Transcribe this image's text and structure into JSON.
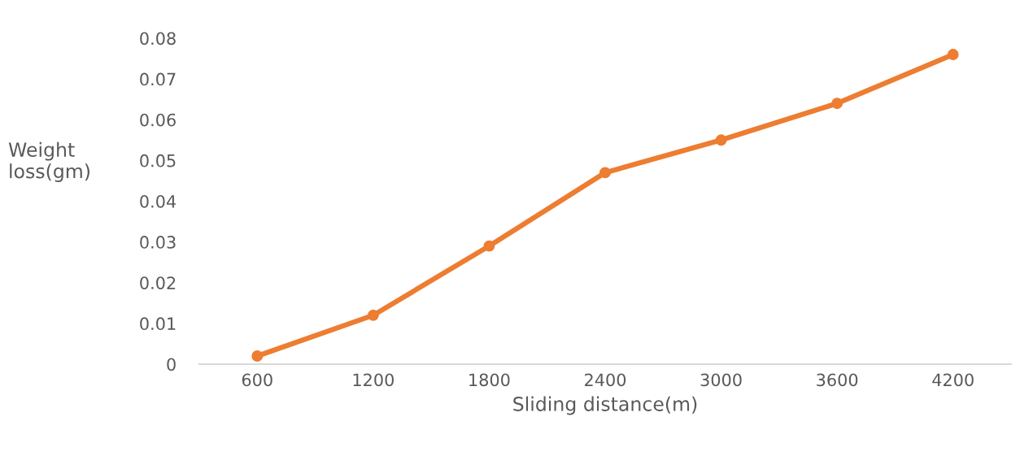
{
  "chart_data": {
    "type": "line",
    "xlabel": "Sliding distance(m)",
    "ylabel": "Weight\nloss(gm)",
    "categories": [
      "600",
      "1200",
      "1800",
      "2400",
      "3000",
      "3600",
      "4200"
    ],
    "series": [
      {
        "color": "#ed7d31",
        "values": [
          0.002,
          0.012,
          0.029,
          0.047,
          0.055,
          0.064,
          0.076
        ]
      }
    ],
    "ylim": [
      0,
      0.08
    ],
    "yticks": [
      0,
      0.01,
      0.02,
      0.03,
      0.04,
      0.05,
      0.06,
      0.07,
      0.08
    ],
    "marker": "circle",
    "line_style": "solid",
    "grid": false
  }
}
